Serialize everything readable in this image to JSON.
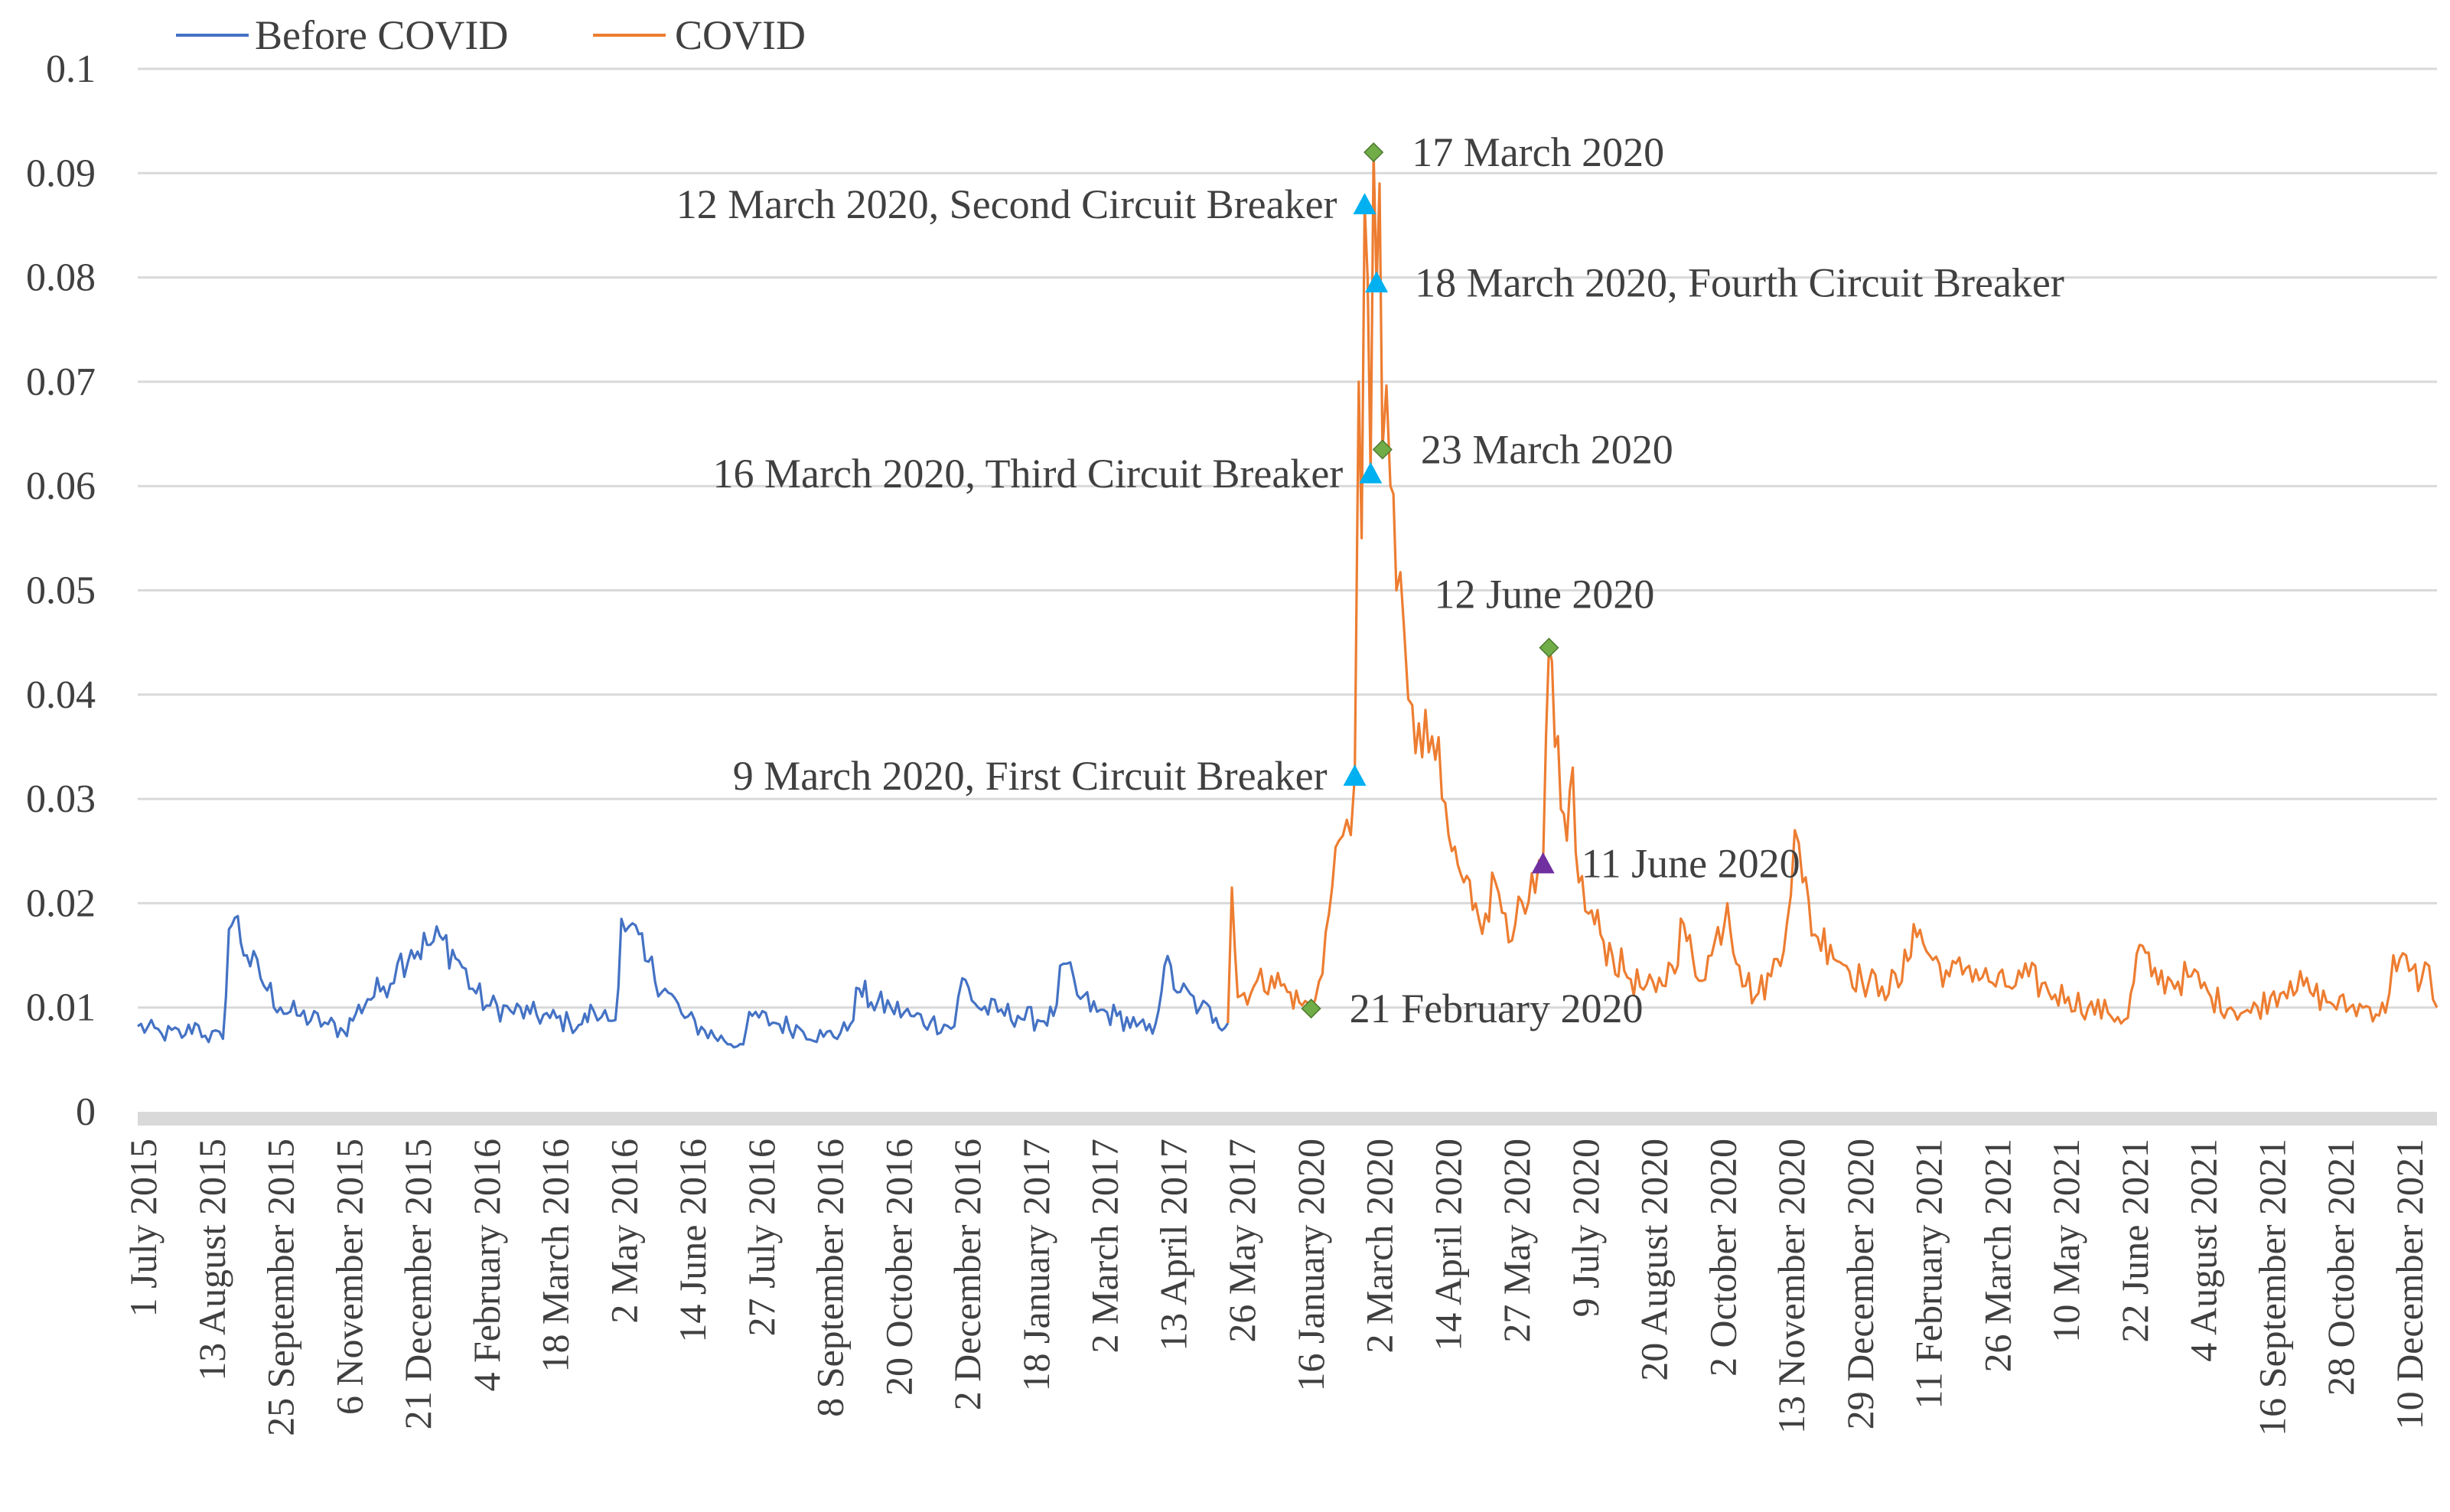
{
  "chart_data": {
    "type": "line",
    "title": "",
    "xlabel": "",
    "ylabel": "",
    "ylim": [
      0,
      0.1
    ],
    "yticks": [
      "0",
      "0.01",
      "0.02",
      "0.03",
      "0.04",
      "0.05",
      "0.06",
      "0.07",
      "0.08",
      "0.09",
      "0.1"
    ],
    "grid": true,
    "legend_position": "top-left",
    "x_tick_labels": [
      "1 July 2015",
      "13 August 2015",
      "25 September 2015",
      "6 November 2015",
      "21 December 2015",
      "4 February 2016",
      "18 March 2016",
      "2 May 2016",
      "14 June 2016",
      "27 July 2016",
      "8 September 2016",
      "20 October 2016",
      "2 December 2016",
      "18 January 2017",
      "2 March 2017",
      "13 April 2017",
      "26 May 2017",
      "16 January 2020",
      "2 March 2020",
      "14 April 2020",
      "27 May 2020",
      "9 July 2020",
      "20 August 2020",
      "2 October 2020",
      "13 November 2020",
      "29 December 2020",
      "11 February 2021",
      "26 March 2021",
      "10 May 2021",
      "22 June 2021",
      "4 August 2021",
      "16 September 2021",
      "28 October 2021",
      "10 December 2021"
    ],
    "series": [
      {
        "name": "Before COVID",
        "color": "#4472c4",
        "keypoints": [
          [
            0,
            0.0082
          ],
          [
            1.2,
            0.0075
          ],
          [
            2.4,
            0.0074
          ],
          [
            2.9,
            0.0085
          ],
          [
            3.4,
            0.0073
          ],
          [
            4.3,
            0.007
          ],
          [
            4.6,
            0.0175
          ],
          [
            4.9,
            0.0186
          ],
          [
            5.5,
            0.015
          ],
          [
            6.2,
            0.0128
          ],
          [
            7.2,
            0.01
          ],
          [
            8.2,
            0.0092
          ],
          [
            9.6,
            0.0084
          ],
          [
            10.4,
            0.0077
          ],
          [
            11.0,
            0.0094
          ],
          [
            11.6,
            0.0108
          ],
          [
            12.4,
            0.012
          ],
          [
            13.1,
            0.0142
          ],
          [
            13.8,
            0.0155
          ],
          [
            14.6,
            0.016
          ],
          [
            15.4,
            0.0165
          ],
          [
            16.2,
            0.0145
          ],
          [
            16.9,
            0.0118
          ],
          [
            17.6,
            0.0102
          ],
          [
            18.8,
            0.0097
          ],
          [
            19.8,
            0.0094
          ],
          [
            20.8,
            0.009
          ],
          [
            21.8,
            0.0085
          ],
          [
            22.4,
            0.0084
          ],
          [
            23.0,
            0.0097
          ],
          [
            23.4,
            0.0091
          ],
          [
            24.1,
            0.0088
          ],
          [
            24.4,
            0.0185
          ],
          [
            24.8,
            0.0178
          ],
          [
            25.6,
            0.0145
          ],
          [
            26.6,
            0.0118
          ],
          [
            27.6,
            0.009
          ],
          [
            28.6,
            0.0078
          ],
          [
            29.6,
            0.0068
          ],
          [
            30.4,
            0.0065
          ],
          [
            31.0,
            0.0092
          ],
          [
            32.2,
            0.0085
          ],
          [
            33.4,
            0.008
          ],
          [
            34.6,
            0.0072
          ],
          [
            35.8,
            0.0078
          ],
          [
            36.4,
            0.0118
          ],
          [
            37.0,
            0.0105
          ],
          [
            38.0,
            0.01
          ],
          [
            39.0,
            0.0092
          ],
          [
            40.0,
            0.0086
          ],
          [
            41.2,
            0.0082
          ],
          [
            41.6,
            0.0128
          ],
          [
            42.4,
            0.01
          ],
          [
            43.4,
            0.0096
          ],
          [
            44.4,
            0.0092
          ],
          [
            45.4,
            0.0088
          ],
          [
            46.2,
            0.0092
          ],
          [
            46.7,
            0.0142
          ],
          [
            47.4,
            0.0112
          ],
          [
            48.4,
            0.0096
          ],
          [
            49.4,
            0.0092
          ],
          [
            50.4,
            0.0082
          ],
          [
            51.2,
            0.0075
          ],
          [
            51.8,
            0.014
          ],
          [
            52.6,
            0.0115
          ],
          [
            53.6,
            0.01
          ],
          [
            54.4,
            0.009
          ],
          [
            55.0,
            0.0085
          ]
        ]
      },
      {
        "name": "COVID",
        "color": "#ed7d31",
        "keypoints": [
          [
            55.0,
            0.0085
          ],
          [
            55.2,
            0.0215
          ],
          [
            55.5,
            0.011
          ],
          [
            56.3,
            0.012
          ],
          [
            57.2,
            0.013
          ],
          [
            58.0,
            0.0115
          ],
          [
            58.6,
            0.0105
          ],
          [
            59.2,
            0.01
          ],
          [
            59.6,
            0.0125
          ],
          [
            60.1,
            0.019
          ],
          [
            60.6,
            0.026
          ],
          [
            61.0,
            0.028
          ],
          [
            61.4,
            0.0322
          ],
          [
            61.6,
            0.07
          ],
          [
            61.75,
            0.055
          ],
          [
            61.9,
            0.087
          ],
          [
            62.05,
            0.08
          ],
          [
            62.2,
            0.061
          ],
          [
            62.35,
            0.092
          ],
          [
            62.5,
            0.079
          ],
          [
            62.65,
            0.089
          ],
          [
            62.8,
            0.0635
          ],
          [
            63.2,
            0.06
          ],
          [
            63.5,
            0.05
          ],
          [
            63.9,
            0.046
          ],
          [
            64.3,
            0.039
          ],
          [
            64.8,
            0.034
          ],
          [
            65.3,
            0.036
          ],
          [
            65.8,
            0.03
          ],
          [
            66.3,
            0.025
          ],
          [
            66.9,
            0.022
          ],
          [
            67.5,
            0.02
          ],
          [
            68.0,
            0.019
          ],
          [
            68.5,
            0.022
          ],
          [
            69.0,
            0.019
          ],
          [
            69.5,
            0.018
          ],
          [
            70.0,
            0.019
          ],
          [
            70.5,
            0.021
          ],
          [
            70.9,
            0.0238
          ],
          [
            71.2,
            0.0445
          ],
          [
            71.5,
            0.035
          ],
          [
            71.8,
            0.029
          ],
          [
            72.1,
            0.026
          ],
          [
            72.4,
            0.033
          ],
          [
            72.7,
            0.022
          ],
          [
            73.2,
            0.019
          ],
          [
            73.8,
            0.017
          ],
          [
            74.4,
            0.015
          ],
          [
            75.0,
            0.0135
          ],
          [
            75.8,
            0.012
          ],
          [
            76.6,
            0.0115
          ],
          [
            77.4,
            0.014
          ],
          [
            78.0,
            0.018
          ],
          [
            78.6,
            0.013
          ],
          [
            79.4,
            0.015
          ],
          [
            80.2,
            0.02
          ],
          [
            80.8,
            0.014
          ],
          [
            81.6,
            0.011
          ],
          [
            82.4,
            0.013
          ],
          [
            83.2,
            0.018
          ],
          [
            83.6,
            0.027
          ],
          [
            84.0,
            0.022
          ],
          [
            84.6,
            0.017
          ],
          [
            85.4,
            0.016
          ],
          [
            86.2,
            0.014
          ],
          [
            87.0,
            0.0125
          ],
          [
            88.0,
            0.012
          ],
          [
            89.0,
            0.0125
          ],
          [
            89.6,
            0.018
          ],
          [
            90.4,
            0.015
          ],
          [
            91.4,
            0.013
          ],
          [
            92.4,
            0.014
          ],
          [
            93.4,
            0.0125
          ],
          [
            94.4,
            0.012
          ],
          [
            95.4,
            0.013
          ],
          [
            96.4,
            0.0115
          ],
          [
            97.4,
            0.011
          ],
          [
            98.4,
            0.01
          ],
          [
            99.4,
            0.0095
          ],
          [
            100.4,
            0.009
          ],
          [
            101.0,
            0.016
          ],
          [
            101.6,
            0.013
          ],
          [
            102.6,
            0.0125
          ],
          [
            103.6,
            0.013
          ],
          [
            104.6,
            0.011
          ],
          [
            105.6,
            0.01
          ],
          [
            106.6,
            0.0095
          ],
          [
            107.6,
            0.011
          ],
          [
            108.6,
            0.0125
          ],
          [
            109.6,
            0.0115
          ],
          [
            110.6,
            0.0105
          ],
          [
            111.6,
            0.01
          ],
          [
            112.6,
            0.01
          ],
          [
            113.4,
            0.0095
          ],
          [
            113.8,
            0.015
          ],
          [
            114.6,
            0.0135
          ],
          [
            115.2,
            0.0125
          ],
          [
            115.6,
            0.014
          ],
          [
            116.0,
            0.01
          ]
        ]
      }
    ],
    "markers": [
      {
        "label": "17 March 2020",
        "x": 62.35,
        "y": 0.092,
        "shape": "diamond",
        "color": "#70ad47",
        "label_side": "right"
      },
      {
        "label": "12 March 2020, Second Circuit Breaker",
        "x": 61.9,
        "y": 0.087,
        "shape": "triangle",
        "color": "#00b0f0",
        "label_side": "left"
      },
      {
        "label": "18 March 2020, Fourth Circuit Breaker",
        "x": 62.5,
        "y": 0.0795,
        "shape": "triangle",
        "color": "#00b0f0",
        "label_side": "right"
      },
      {
        "label": "23 March 2020",
        "x": 62.8,
        "y": 0.0635,
        "shape": "diamond",
        "color": "#70ad47",
        "label_side": "right"
      },
      {
        "label": "16 March 2020, Third Circuit Breaker",
        "x": 62.2,
        "y": 0.0612,
        "shape": "triangle",
        "color": "#00b0f0",
        "label_side": "left"
      },
      {
        "label": "12 June 2020",
        "x": 71.2,
        "y": 0.0445,
        "shape": "diamond",
        "color": "#70ad47",
        "label_side": "above-left"
      },
      {
        "label": "9 March 2020, First Circuit Breaker",
        "x": 61.4,
        "y": 0.0322,
        "shape": "triangle",
        "color": "#00b0f0",
        "label_side": "left"
      },
      {
        "label": "11 June 2020",
        "x": 70.9,
        "y": 0.0238,
        "shape": "triangle",
        "color": "#7030a0",
        "label_side": "right"
      },
      {
        "label": "21 February 2020",
        "x": 59.2,
        "y": 0.0099,
        "shape": "diamond",
        "color": "#70ad47",
        "label_side": "right"
      }
    ]
  }
}
